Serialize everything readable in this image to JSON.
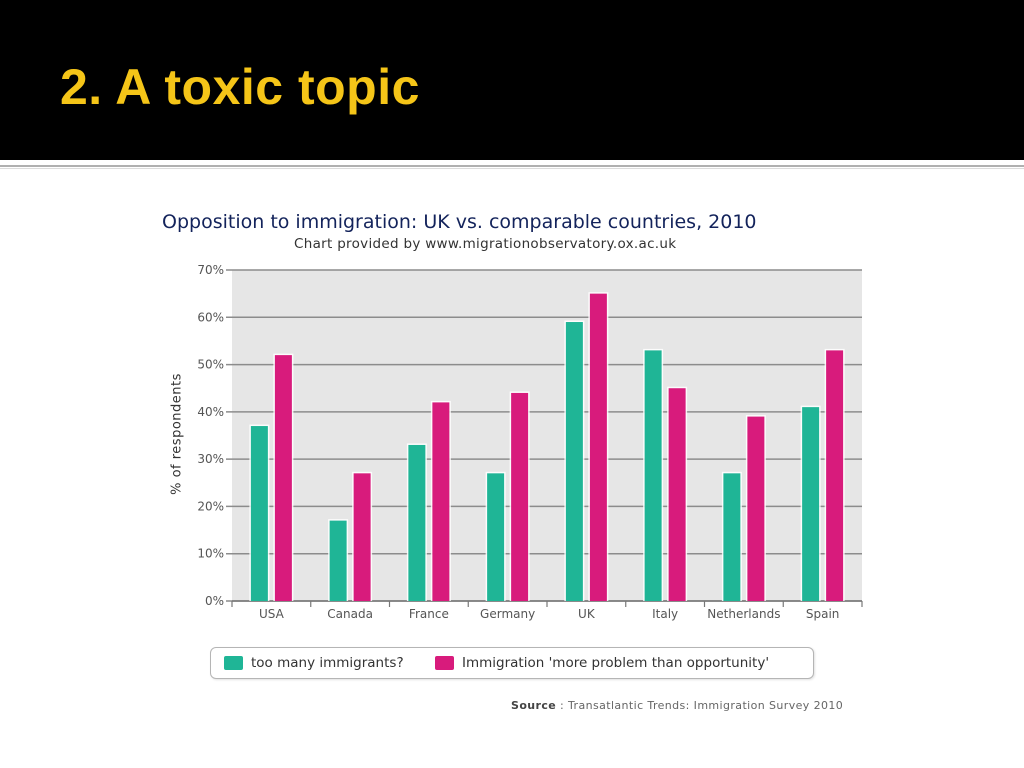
{
  "slide": {
    "title": "2. A toxic topic"
  },
  "colors": {
    "header_bg": "#000000",
    "title_color": "#f5c518",
    "series_teal": "#1fb596",
    "series_pink": "#d81b7c",
    "plot_bg": "#e6e6e6"
  },
  "chart_data": {
    "type": "bar",
    "title": "Opposition to immigration: UK vs. comparable countries, 2010",
    "subtitle": "Chart provided by www.migrationobservatory.ox.ac.uk",
    "xlabel": "",
    "ylabel": "% of respondents",
    "ylim": [
      0,
      70
    ],
    "yticks": [
      "0%",
      "10%",
      "20%",
      "30%",
      "40%",
      "50%",
      "60%",
      "70%"
    ],
    "grid": true,
    "legend_position": "bottom",
    "categories": [
      "USA",
      "Canada",
      "France",
      "Germany",
      "UK",
      "Italy",
      "Netherlands",
      "Spain"
    ],
    "series": [
      {
        "name": "too many immigrants?",
        "color": "#1fb596",
        "values": [
          37,
          17,
          33,
          27,
          59,
          53,
          27,
          41
        ]
      },
      {
        "name": "Immigration 'more problem than opportunity'",
        "color": "#d81b7c",
        "values": [
          52,
          27,
          42,
          44,
          65,
          45,
          39,
          53
        ]
      }
    ]
  },
  "source": {
    "label": "Source",
    "separator": " : ",
    "text": "Transatlantic Trends: Immigration Survey 2010"
  }
}
